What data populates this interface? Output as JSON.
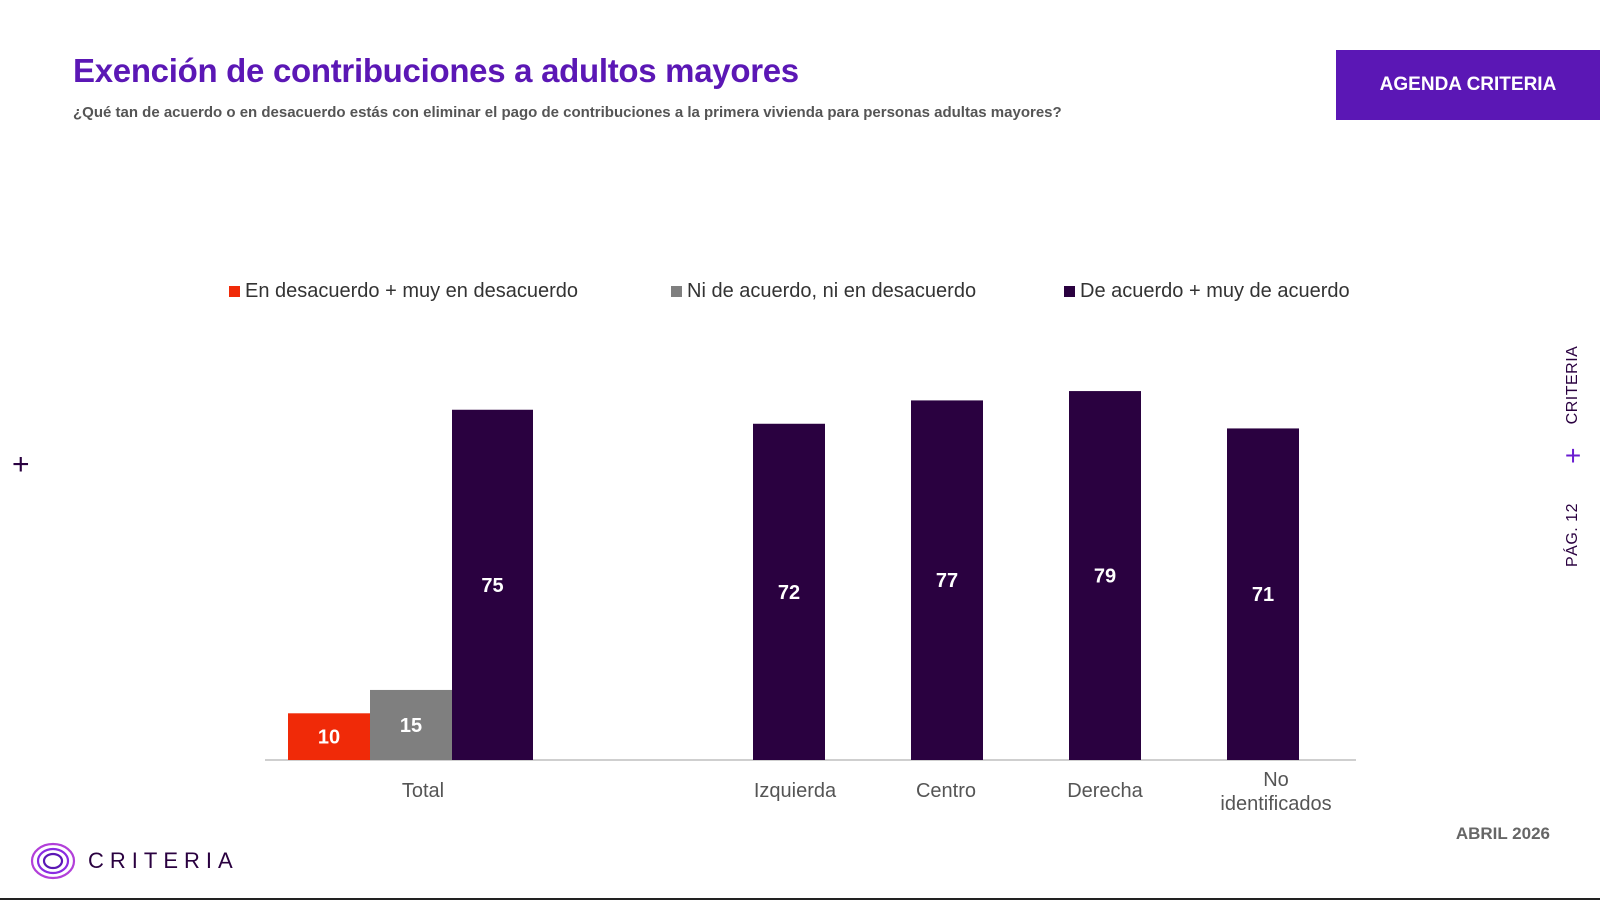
{
  "header": {
    "title": "Exención de contribuciones a adultos mayores",
    "subtitle": "¿Qué tan de acuerdo o en desacuerdo estás con eliminar el pago de contribuciones a la primera vivienda para personas adultas mayores?",
    "badge": "AGENDA CRITERIA"
  },
  "side": {
    "brand": "CRITERIA",
    "plus": "+",
    "page": "PÁG. 12",
    "left_plus": "+"
  },
  "footer": {
    "date": "ABRIL 2026",
    "logo_text": "CRITERIA"
  },
  "colors": {
    "accent": "#5b17b5",
    "disagree": "#f02a08",
    "neutral": "#7f7f7f",
    "agree": "#2a0140"
  },
  "chart_data": {
    "type": "bar",
    "categories": [
      "Total",
      "Izquierda",
      "Centro",
      "Derecha",
      "No identificados"
    ],
    "series": [
      {
        "name": "En desacuerdo + muy en desacuerdo",
        "color": "#f02a08",
        "values": [
          10,
          null,
          null,
          null,
          null
        ]
      },
      {
        "name": "Ni de acuerdo, ni en desacuerdo",
        "color": "#7f7f7f",
        "values": [
          15,
          null,
          null,
          null,
          null
        ]
      },
      {
        "name": "De acuerdo + muy de acuerdo",
        "color": "#2a0140",
        "values": [
          75,
          72,
          77,
          79,
          71
        ]
      }
    ],
    "ylim": [
      0,
      100
    ],
    "grid": false,
    "legend": "top",
    "data_labels": true
  }
}
